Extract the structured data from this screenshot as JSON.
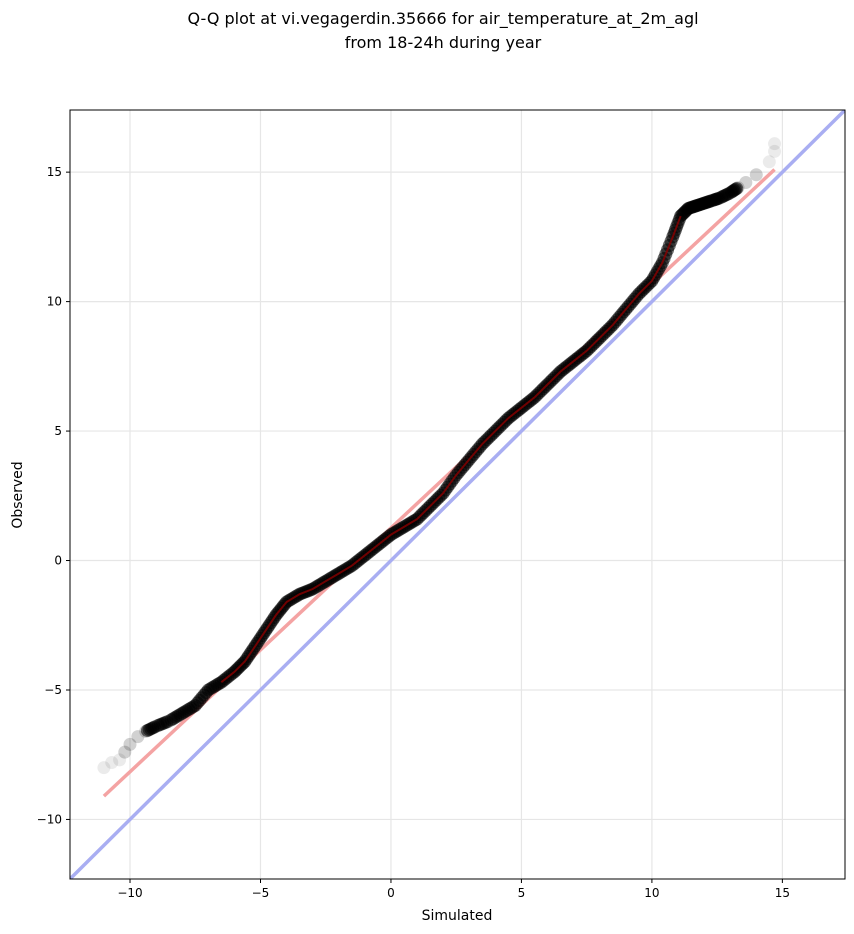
{
  "chart_data": {
    "type": "scatter",
    "title": "Q-Q plot at vi.vegagerdin.35666 for air_temperature_at_2m_agl",
    "subtitle": "from 18-24h during year",
    "xlabel": "Simulated",
    "ylabel": "Observed",
    "xlim": [
      -12.3,
      17.4
    ],
    "ylim": [
      -12.3,
      17.4
    ],
    "xticks": [
      -10,
      -5,
      0,
      5,
      10,
      15
    ],
    "yticks": [
      -10,
      -5,
      0,
      5,
      10,
      15
    ],
    "xtick_labels": [
      "−10",
      "−5",
      "0",
      "5",
      "10",
      "15"
    ],
    "ytick_labels": [
      "−10",
      "−5",
      "0",
      "5",
      "10",
      "15"
    ],
    "grid": true,
    "quantile_points": [
      [
        -11.0,
        -8.0
      ],
      [
        -10.7,
        -7.8
      ],
      [
        -10.4,
        -7.7
      ],
      [
        -10.2,
        -7.4
      ],
      [
        -10.0,
        -7.1
      ],
      [
        -9.7,
        -6.8
      ],
      [
        -9.4,
        -6.6
      ],
      [
        -9.0,
        -6.4
      ],
      [
        -8.5,
        -6.2
      ],
      [
        -8.0,
        -5.9
      ],
      [
        -7.5,
        -5.6
      ],
      [
        -7.0,
        -5.0
      ],
      [
        -6.5,
        -4.7
      ],
      [
        -6.0,
        -4.3
      ],
      [
        -5.6,
        -3.9
      ],
      [
        -5.2,
        -3.3
      ],
      [
        -4.8,
        -2.7
      ],
      [
        -4.4,
        -2.1
      ],
      [
        -4.0,
        -1.6
      ],
      [
        -3.5,
        -1.3
      ],
      [
        -3.0,
        -1.1
      ],
      [
        -2.5,
        -0.8
      ],
      [
        -2.0,
        -0.5
      ],
      [
        -1.5,
        -0.2
      ],
      [
        -1.0,
        0.2
      ],
      [
        -0.5,
        0.6
      ],
      [
        0.0,
        1.0
      ],
      [
        0.5,
        1.3
      ],
      [
        1.0,
        1.6
      ],
      [
        1.5,
        2.1
      ],
      [
        2.0,
        2.6
      ],
      [
        2.5,
        3.3
      ],
      [
        3.0,
        3.9
      ],
      [
        3.5,
        4.5
      ],
      [
        4.0,
        5.0
      ],
      [
        4.5,
        5.5
      ],
      [
        5.0,
        5.9
      ],
      [
        5.5,
        6.3
      ],
      [
        6.0,
        6.8
      ],
      [
        6.5,
        7.3
      ],
      [
        7.0,
        7.7
      ],
      [
        7.5,
        8.1
      ],
      [
        8.0,
        8.6
      ],
      [
        8.5,
        9.1
      ],
      [
        9.0,
        9.7
      ],
      [
        9.5,
        10.3
      ],
      [
        10.0,
        10.8
      ],
      [
        10.4,
        11.5
      ],
      [
        10.8,
        12.5
      ],
      [
        11.1,
        13.3
      ],
      [
        11.4,
        13.6
      ],
      [
        11.7,
        13.7
      ],
      [
        12.0,
        13.8
      ],
      [
        12.3,
        13.9
      ],
      [
        12.6,
        14.0
      ],
      [
        13.0,
        14.2
      ],
      [
        13.3,
        14.4
      ],
      [
        13.6,
        14.6
      ],
      [
        14.0,
        14.9
      ],
      [
        14.5,
        15.4
      ],
      [
        14.7,
        15.8
      ],
      [
        14.7,
        16.1
      ]
    ],
    "series": [
      {
        "kind": "fit",
        "x": [
          -11.0,
          14.7
        ],
        "y": [
          -9.1,
          15.1
        ],
        "color": "#f4a3a3"
      },
      {
        "kind": "identity",
        "x": [
          -12.3,
          17.4
        ],
        "y": [
          -12.3,
          17.4
        ],
        "color": "#a9aef2"
      }
    ],
    "point_color": "#000000",
    "inner_line_color": "#8b0000"
  }
}
